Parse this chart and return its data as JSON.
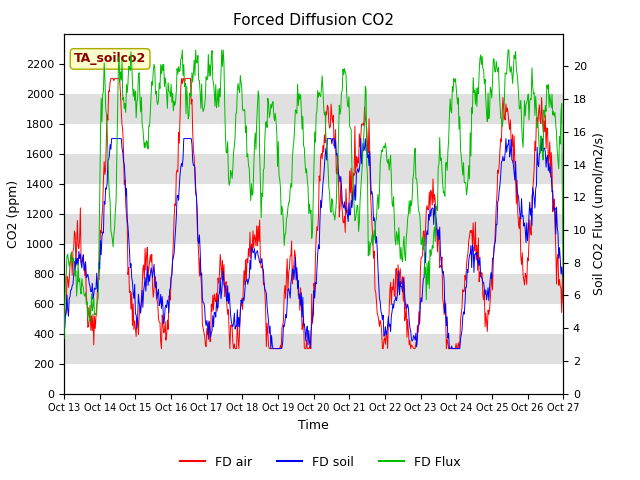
{
  "title": "Forced Diffusion CO2",
  "xlabel": "Time",
  "ylabel_left": "CO2 (ppm)",
  "ylabel_right": "Soil CO2 Flux (umol/m2/s)",
  "annotation": "TA_soilco2",
  "ylim_left": [
    0,
    2400
  ],
  "ylim_right": [
    0,
    22
  ],
  "yticks_left": [
    0,
    200,
    400,
    600,
    800,
    1000,
    1200,
    1400,
    1600,
    1800,
    2000,
    2200
  ],
  "yticks_right": [
    0,
    2,
    4,
    6,
    8,
    10,
    12,
    14,
    16,
    18,
    20
  ],
  "xtick_labels": [
    "Oct 13",
    "Oct 14",
    "Oct 15",
    "Oct 16",
    "Oct 17",
    "Oct 18",
    "Oct 19",
    "Oct 20",
    "Oct 21",
    "Oct 22",
    "Oct 23",
    "Oct 24",
    "Oct 25",
    "Oct 26",
    "Oct 27"
  ],
  "color_air": "#ff0000",
  "color_soil": "#0000ff",
  "color_flux": "#00bb00",
  "band_color": "#e0e0e0",
  "legend_labels": [
    "FD air",
    "FD soil",
    "FD Flux"
  ],
  "bg_color": "#ffffff",
  "annotation_box_color": "#ffffcc",
  "annotation_text_color": "#880000",
  "annotation_edge_color": "#aaaa00"
}
